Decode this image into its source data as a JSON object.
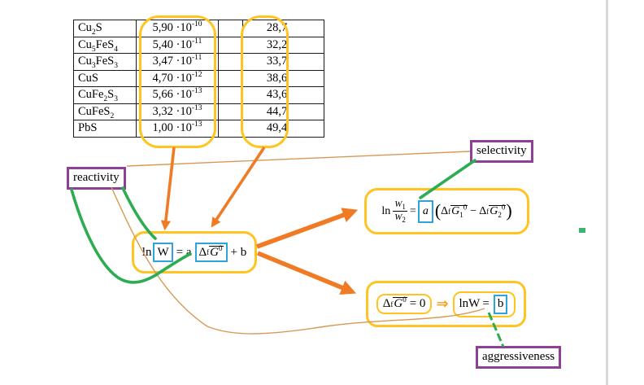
{
  "colors": {
    "gold": "#FFC421",
    "blue": "#2EA3DC",
    "orange_arrow": "#F07B24",
    "tan_line": "#D79A55",
    "green": "#2EAC52",
    "purple": "#8E4097"
  },
  "table": {
    "times_ten": "·10",
    "rows": [
      {
        "formula": [
          [
            "Cu",
            "2"
          ],
          [
            "S",
            ""
          ]
        ],
        "mantissa": "5,90",
        "exponent": "-10",
        "value": "28,7"
      },
      {
        "formula": [
          [
            "Cu",
            "5"
          ],
          [
            "FeS",
            "4"
          ]
        ],
        "mantissa": "5,40",
        "exponent": "-11",
        "value": "32,2"
      },
      {
        "formula": [
          [
            "Cu",
            "3"
          ],
          [
            "FeS",
            "3"
          ]
        ],
        "mantissa": "3,47",
        "exponent": "-11",
        "value": "33,7"
      },
      {
        "formula": [
          [
            "CuS",
            ""
          ]
        ],
        "mantissa": "4,70",
        "exponent": "-12",
        "value": "38,6"
      },
      {
        "formula": [
          [
            "CuFe",
            "2"
          ],
          [
            "S",
            "3"
          ]
        ],
        "mantissa": "5,66",
        "exponent": "-13",
        "value": "43,6"
      },
      {
        "formula": [
          [
            "CuFeS",
            "2"
          ]
        ],
        "mantissa": "3,32",
        "exponent": "-13",
        "value": "44,7"
      },
      {
        "formula": [
          [
            "PbS",
            ""
          ]
        ],
        "mantissa": "1,00",
        "exponent": "-13",
        "value": "49,4"
      }
    ]
  },
  "labels": {
    "reactivity": "reactivity",
    "selectivity": "selectivity",
    "aggressiveness": "aggressiveness"
  },
  "tok": {
    "ln": "ln",
    "W": "W",
    "a": "a",
    "b": "b",
    "G": "G",
    "delta": "Δ",
    "f": "f",
    "zero": "0",
    "one": "1",
    "two": "2",
    "eq": "=",
    "eq_a": "= a",
    "plus_b": "+ b",
    "eq_zero": "= 0",
    "minus": "−",
    "lparen": "(",
    "rparen": ")",
    "implies": "⇒"
  }
}
